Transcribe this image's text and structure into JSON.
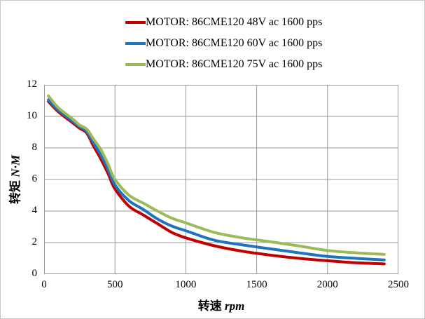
{
  "page": {
    "background": "#ffffff",
    "frame_color": "#c9c9c9",
    "grid_color": "#9a9a9a"
  },
  "legend": {
    "items": [
      {
        "label": "MOTOR: 86CME120 48V ac 1600 pps",
        "color": "#c00000"
      },
      {
        "label": "MOTOR: 86CME120 60V ac 1600 pps",
        "color": "#1f74be"
      },
      {
        "label": "MOTOR: 86CME120 75V ac 1600 pps",
        "color": "#9bbb59"
      }
    ]
  },
  "axes": {
    "y_title_cn": "转矩",
    "y_title_unit": "N·M",
    "x_title_cn": "转速",
    "x_title_unit": "rpm",
    "y_tick_labels": [
      "0",
      "2",
      "4",
      "6",
      "8",
      "10",
      "12"
    ],
    "x_tick_labels": [
      "0",
      "500",
      "1000",
      "1500",
      "2000",
      "2500"
    ]
  },
  "chart_data": {
    "type": "line",
    "title": "",
    "xlabel": "转速 rpm",
    "ylabel": "转矩 N·M",
    "xlim": [
      0,
      2500
    ],
    "ylim": [
      0,
      12
    ],
    "x_ticks": [
      0,
      500,
      1000,
      1500,
      2000,
      2500
    ],
    "y_ticks": [
      0,
      2,
      4,
      6,
      8,
      10,
      12
    ],
    "grid": true,
    "legend_position": "top",
    "x": [
      30,
      100,
      200,
      250,
      300,
      350,
      400,
      450,
      500,
      600,
      700,
      800,
      900,
      1000,
      1200,
      1400,
      1600,
      1800,
      2000,
      2200,
      2400
    ],
    "series": [
      {
        "name": "MOTOR: 86CME120 48V ac 1600 pps",
        "color": "#c00000",
        "values": [
          10.95,
          10.3,
          9.6,
          9.25,
          8.95,
          8.1,
          7.3,
          6.4,
          5.4,
          4.3,
          3.75,
          3.2,
          2.65,
          2.3,
          1.8,
          1.45,
          1.2,
          1.0,
          0.85,
          0.72,
          0.65
        ]
      },
      {
        "name": "MOTOR: 86CME120 60V ac 1600 pps",
        "color": "#1f74be",
        "values": [
          11.05,
          10.4,
          9.7,
          9.35,
          9.05,
          8.3,
          7.55,
          6.65,
          5.65,
          4.65,
          4.1,
          3.5,
          3.05,
          2.75,
          2.15,
          1.85,
          1.6,
          1.35,
          1.12,
          1.0,
          0.9
        ]
      },
      {
        "name": "MOTOR: 86CME120 75V ac 1600 pps",
        "color": "#9bbb59",
        "values": [
          11.3,
          10.55,
          9.85,
          9.45,
          9.2,
          8.55,
          7.9,
          7.0,
          6.0,
          5.0,
          4.5,
          4.0,
          3.55,
          3.25,
          2.65,
          2.3,
          2.05,
          1.78,
          1.5,
          1.35,
          1.25
        ]
      }
    ]
  }
}
